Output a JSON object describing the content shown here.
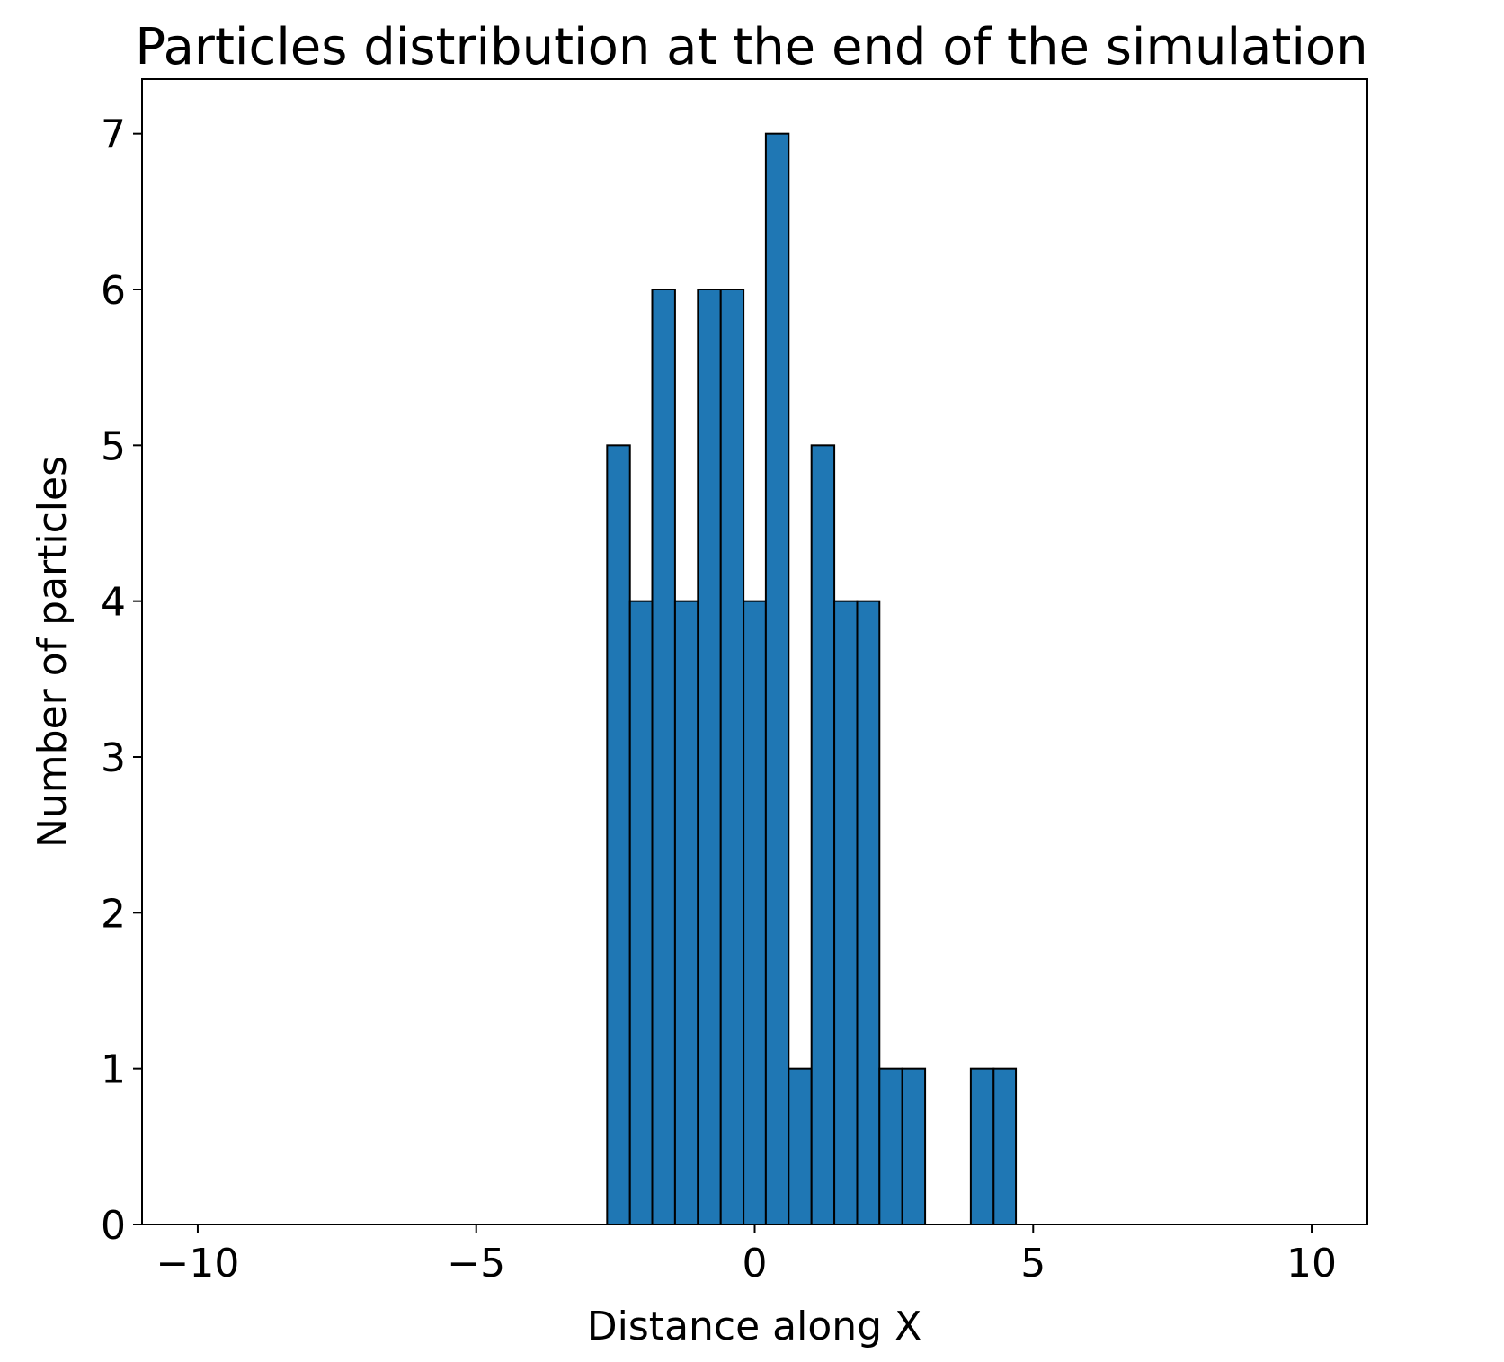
{
  "chart_data": {
    "type": "bar",
    "title": "Particles distribution at the end of the simulation",
    "xlabel": "Distance along X",
    "ylabel": "Number of particles",
    "xlim": [
      -11,
      11
    ],
    "ylim": [
      0,
      7.35
    ],
    "xticks": [
      {
        "value": -10,
        "label": "−10"
      },
      {
        "value": -5,
        "label": "−5"
      },
      {
        "value": 0,
        "label": "0"
      },
      {
        "value": 5,
        "label": "5"
      },
      {
        "value": 10,
        "label": "10"
      }
    ],
    "yticks": [
      {
        "value": 0,
        "label": "0"
      },
      {
        "value": 1,
        "label": "1"
      },
      {
        "value": 2,
        "label": "2"
      },
      {
        "value": 3,
        "label": "3"
      },
      {
        "value": 4,
        "label": "4"
      },
      {
        "value": 5,
        "label": "5"
      },
      {
        "value": 6,
        "label": "6"
      },
      {
        "value": 7,
        "label": "7"
      }
    ],
    "grid": false,
    "bar_color": "#1f77b4",
    "edge_color": "#000000",
    "bins": [
      {
        "x0": -10.0,
        "x1": -9.59,
        "count": 0
      },
      {
        "x0": -9.59,
        "x1": -9.18,
        "count": 0
      },
      {
        "x0": -9.18,
        "x1": -8.78,
        "count": 0
      },
      {
        "x0": -8.78,
        "x1": -8.37,
        "count": 0
      },
      {
        "x0": -8.37,
        "x1": -7.96,
        "count": 0
      },
      {
        "x0": -7.96,
        "x1": -7.55,
        "count": 0
      },
      {
        "x0": -7.55,
        "x1": -7.14,
        "count": 0
      },
      {
        "x0": -7.14,
        "x1": -6.73,
        "count": 0
      },
      {
        "x0": -6.73,
        "x1": -6.33,
        "count": 0
      },
      {
        "x0": -6.33,
        "x1": -5.92,
        "count": 0
      },
      {
        "x0": -5.92,
        "x1": -5.51,
        "count": 0
      },
      {
        "x0": -5.51,
        "x1": -5.1,
        "count": 0
      },
      {
        "x0": -5.1,
        "x1": -4.69,
        "count": 0
      },
      {
        "x0": -4.69,
        "x1": -4.29,
        "count": 0
      },
      {
        "x0": -4.29,
        "x1": -3.88,
        "count": 0
      },
      {
        "x0": -3.88,
        "x1": -3.47,
        "count": 0
      },
      {
        "x0": -3.47,
        "x1": -3.06,
        "count": 0
      },
      {
        "x0": -3.06,
        "x1": -2.65,
        "count": 0
      },
      {
        "x0": -2.65,
        "x1": -2.24,
        "count": 5
      },
      {
        "x0": -2.24,
        "x1": -1.84,
        "count": 4
      },
      {
        "x0": -1.84,
        "x1": -1.43,
        "count": 6
      },
      {
        "x0": -1.43,
        "x1": -1.02,
        "count": 4
      },
      {
        "x0": -1.02,
        "x1": -0.61,
        "count": 6
      },
      {
        "x0": -0.61,
        "x1": -0.2,
        "count": 6
      },
      {
        "x0": -0.2,
        "x1": 0.2,
        "count": 4
      },
      {
        "x0": 0.2,
        "x1": 0.61,
        "count": 7
      },
      {
        "x0": 0.61,
        "x1": 1.02,
        "count": 1
      },
      {
        "x0": 1.02,
        "x1": 1.43,
        "count": 5
      },
      {
        "x0": 1.43,
        "x1": 1.84,
        "count": 4
      },
      {
        "x0": 1.84,
        "x1": 2.24,
        "count": 4
      },
      {
        "x0": 2.24,
        "x1": 2.65,
        "count": 1
      },
      {
        "x0": 2.65,
        "x1": 3.06,
        "count": 1
      },
      {
        "x0": 3.06,
        "x1": 3.47,
        "count": 0
      },
      {
        "x0": 3.47,
        "x1": 3.88,
        "count": 0
      },
      {
        "x0": 3.88,
        "x1": 4.29,
        "count": 1
      },
      {
        "x0": 4.29,
        "x1": 4.69,
        "count": 1
      },
      {
        "x0": 4.69,
        "x1": 5.1,
        "count": 0
      },
      {
        "x0": 5.1,
        "x1": 5.51,
        "count": 0
      },
      {
        "x0": 5.51,
        "x1": 5.92,
        "count": 0
      },
      {
        "x0": 5.92,
        "x1": 6.33,
        "count": 0
      },
      {
        "x0": 6.33,
        "x1": 6.73,
        "count": 0
      },
      {
        "x0": 6.73,
        "x1": 7.14,
        "count": 0
      },
      {
        "x0": 7.14,
        "x1": 7.55,
        "count": 0
      },
      {
        "x0": 7.55,
        "x1": 7.96,
        "count": 0
      },
      {
        "x0": 7.96,
        "x1": 8.37,
        "count": 0
      },
      {
        "x0": 8.37,
        "x1": 8.78,
        "count": 0
      },
      {
        "x0": 8.78,
        "x1": 9.18,
        "count": 0
      },
      {
        "x0": 9.18,
        "x1": 9.59,
        "count": 0
      },
      {
        "x0": 9.59,
        "x1": 10.0,
        "count": 0
      }
    ]
  }
}
